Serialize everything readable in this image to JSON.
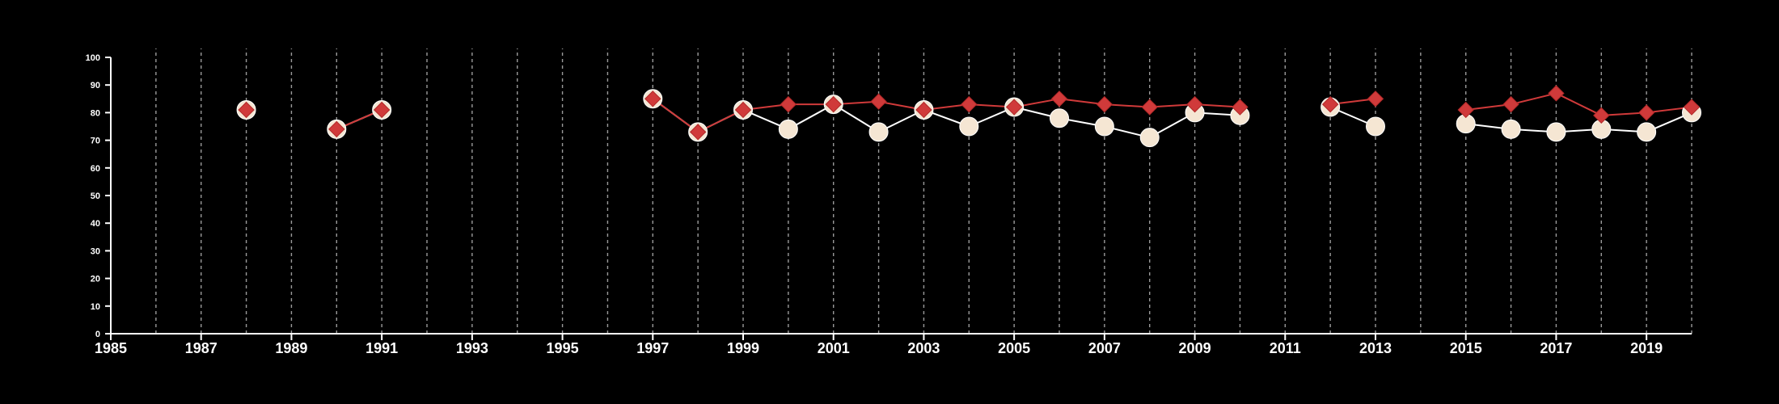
{
  "chart_data": {
    "type": "line",
    "title": "",
    "xlabel": "",
    "ylabel": "",
    "xlim": [
      1985,
      2020
    ],
    "ylim": [
      0,
      100
    ],
    "x_ticks": [
      1985,
      1987,
      1989,
      1991,
      1993,
      1995,
      1997,
      1999,
      2001,
      2003,
      2005,
      2007,
      2009,
      2011,
      2013,
      2015,
      2017,
      2019
    ],
    "y_ticks": [
      0,
      10,
      20,
      30,
      40,
      50,
      60,
      70,
      80,
      90,
      100
    ],
    "vertical_gridlines": [
      1986,
      1987,
      1988,
      1989,
      1990,
      1991,
      1992,
      1993,
      1994,
      1995,
      1996,
      1997,
      1998,
      1999,
      2000,
      2001,
      2002,
      2003,
      2004,
      2005,
      2006,
      2007,
      2008,
      2009,
      2010,
      2011,
      2012,
      2013,
      2014,
      2015,
      2016,
      2017,
      2018,
      2019,
      2020
    ],
    "grid": "vertical dashed",
    "series": [
      {
        "marker": "circle",
        "color": "#f5e6d3",
        "line_color": "#ffffff",
        "points": [
          {
            "x": 1988,
            "y": 81
          },
          {
            "x": 1990,
            "y": 74
          },
          {
            "x": 1991,
            "y": 81
          },
          {
            "x": 1997,
            "y": 85
          },
          {
            "x": 1998,
            "y": 73
          },
          {
            "x": 1999,
            "y": 81
          },
          {
            "x": 2000,
            "y": 74
          },
          {
            "x": 2001,
            "y": 83
          },
          {
            "x": 2002,
            "y": 73
          },
          {
            "x": 2003,
            "y": 81
          },
          {
            "x": 2004,
            "y": 75
          },
          {
            "x": 2005,
            "y": 82
          },
          {
            "x": 2006,
            "y": 78
          },
          {
            "x": 2007,
            "y": 75
          },
          {
            "x": 2008,
            "y": 71
          },
          {
            "x": 2009,
            "y": 80
          },
          {
            "x": 2010,
            "y": 79
          },
          {
            "x": 2012,
            "y": 82
          },
          {
            "x": 2013,
            "y": 75
          },
          {
            "x": 2015,
            "y": 76
          },
          {
            "x": 2016,
            "y": 74
          },
          {
            "x": 2017,
            "y": 73
          },
          {
            "x": 2018,
            "y": 74
          },
          {
            "x": 2019,
            "y": 73
          },
          {
            "x": 2020,
            "y": 80
          }
        ]
      },
      {
        "marker": "diamond",
        "color": "#d03a3a",
        "line_color": "#d03a3a",
        "points": [
          {
            "x": 1988,
            "y": 81
          },
          {
            "x": 1990,
            "y": 74
          },
          {
            "x": 1991,
            "y": 81
          },
          {
            "x": 1997,
            "y": 85
          },
          {
            "x": 1998,
            "y": 73
          },
          {
            "x": 1999,
            "y": 81
          },
          {
            "x": 2000,
            "y": 83
          },
          {
            "x": 2001,
            "y": 83
          },
          {
            "x": 2002,
            "y": 84
          },
          {
            "x": 2003,
            "y": 81
          },
          {
            "x": 2004,
            "y": 83
          },
          {
            "x": 2005,
            "y": 82
          },
          {
            "x": 2006,
            "y": 85
          },
          {
            "x": 2007,
            "y": 83
          },
          {
            "x": 2008,
            "y": 82
          },
          {
            "x": 2009,
            "y": 83
          },
          {
            "x": 2010,
            "y": 82
          },
          {
            "x": 2012,
            "y": 83
          },
          {
            "x": 2013,
            "y": 85
          },
          {
            "x": 2015,
            "y": 81
          },
          {
            "x": 2016,
            "y": 83
          },
          {
            "x": 2017,
            "y": 87
          },
          {
            "x": 2018,
            "y": 79
          },
          {
            "x": 2019,
            "y": 80
          },
          {
            "x": 2020,
            "y": 82
          }
        ]
      }
    ]
  }
}
